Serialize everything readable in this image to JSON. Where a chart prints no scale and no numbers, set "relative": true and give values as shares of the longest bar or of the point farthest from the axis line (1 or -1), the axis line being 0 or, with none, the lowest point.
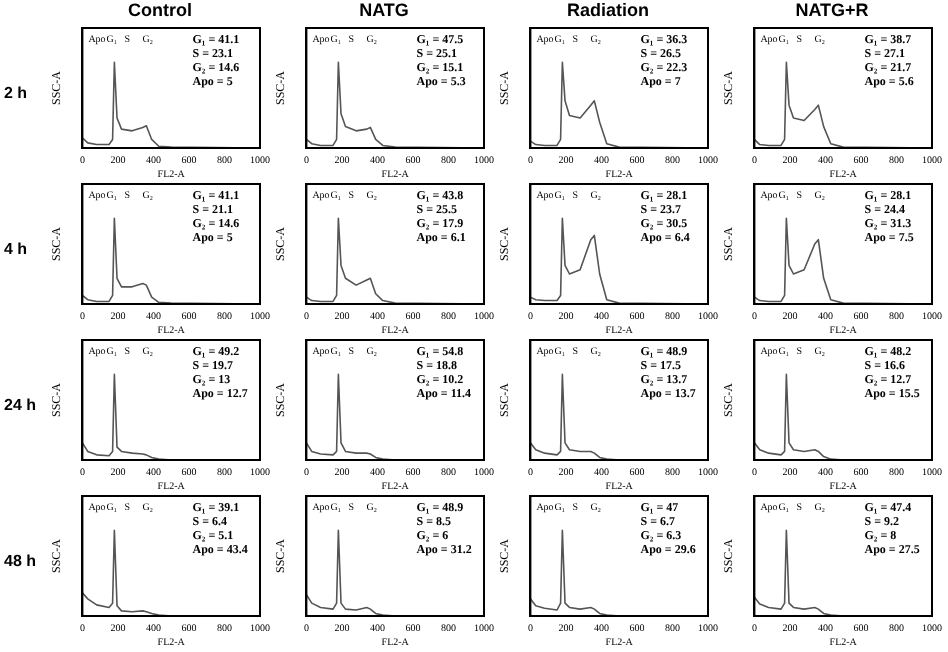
{
  "chart_data": [
    {
      "type": "line",
      "title": "Control",
      "subtitle": "2 h",
      "xlabel": "FL2-A",
      "ylabel": "SSC-A",
      "relative": true,
      "marker": "none",
      "color": "#555555",
      "xlim": [
        0,
        1000
      ],
      "xticks": [
        0,
        200,
        400,
        600,
        800,
        1000
      ],
      "x": [
        0,
        30,
        80,
        150,
        170,
        180,
        195,
        220,
        280,
        340,
        360,
        390,
        430,
        500,
        1000
      ],
      "values": [
        0.12,
        0.06,
        0.04,
        0.04,
        0.1,
        1,
        0.35,
        0.22,
        0.2,
        0.24,
        0.26,
        0.1,
        0.02,
        0.01,
        0
      ],
      "annotations": [
        "G₁ = 41.1",
        "S = 23.1",
        "G₂ = 14.6",
        "Apo = 5",
        "Apo",
        "G₁",
        "S",
        "G₂"
      ]
    },
    {
      "type": "line",
      "title": "NATG",
      "xlabel": "FL2-A",
      "ylabel": "SSC-A",
      "relative": true,
      "marker": "none",
      "color": "#555555",
      "xlim": [
        0,
        1000
      ],
      "xticks": [
        0,
        200,
        400,
        600,
        800,
        1000
      ],
      "x": [
        0,
        30,
        80,
        150,
        170,
        180,
        195,
        220,
        280,
        340,
        360,
        390,
        430,
        500,
        1000
      ],
      "values": [
        0.1,
        0.05,
        0.03,
        0.03,
        0.1,
        1,
        0.4,
        0.25,
        0.2,
        0.22,
        0.24,
        0.1,
        0.03,
        0.01,
        0
      ],
      "annotations": [
        "G₁ = 47.5",
        "S = 25.1",
        "G₂ = 15.1",
        "Apo = 5.3",
        "Apo",
        "G₁",
        "S",
        "G₂"
      ]
    },
    {
      "type": "line",
      "title": "Radiation",
      "xlabel": "FL2-A",
      "ylabel": "SSC-A",
      "relative": true,
      "marker": "none",
      "color": "#555555",
      "xlim": [
        0,
        1000
      ],
      "xticks": [
        0,
        200,
        400,
        600,
        800,
        1000
      ],
      "x": [
        0,
        30,
        80,
        150,
        170,
        180,
        195,
        220,
        280,
        340,
        360,
        390,
        430,
        500,
        1000
      ],
      "values": [
        0.08,
        0.04,
        0.03,
        0.03,
        0.1,
        1,
        0.55,
        0.38,
        0.35,
        0.5,
        0.55,
        0.3,
        0.05,
        0.01,
        0
      ],
      "annotations": [
        "G₁ = 36.3",
        "S = 26.5",
        "G₂ = 22.3",
        "Apo = 7",
        "Apo",
        "G₁",
        "S",
        "G₂"
      ]
    },
    {
      "type": "line",
      "title": "NATG+R",
      "xlabel": "FL2-A",
      "ylabel": "SSC-A",
      "relative": true,
      "marker": "none",
      "color": "#555555",
      "xlim": [
        0,
        1000
      ],
      "xticks": [
        0,
        200,
        400,
        600,
        800,
        1000
      ],
      "x": [
        0,
        30,
        80,
        150,
        170,
        180,
        195,
        220,
        280,
        340,
        360,
        390,
        430,
        500,
        1000
      ],
      "values": [
        0.1,
        0.04,
        0.03,
        0.03,
        0.1,
        1,
        0.5,
        0.35,
        0.32,
        0.45,
        0.5,
        0.25,
        0.05,
        0.01,
        0
      ],
      "annotations": [
        "G₁ = 38.7",
        "S = 27.1",
        "G₂ = 21.7",
        "Apo = 5.6",
        "Apo",
        "G₁",
        "S",
        "G₂"
      ]
    },
    {
      "type": "line",
      "subtitle": "4 h",
      "xlabel": "FL2-A",
      "ylabel": "SSC-A",
      "relative": true,
      "marker": "none",
      "color": "#555555",
      "xlim": [
        0,
        1000
      ],
      "xticks": [
        0,
        200,
        400,
        600,
        800,
        1000
      ],
      "x": [
        0,
        30,
        80,
        150,
        170,
        180,
        195,
        220,
        280,
        340,
        360,
        390,
        430,
        500,
        1000
      ],
      "values": [
        0.1,
        0.05,
        0.03,
        0.03,
        0.1,
        1,
        0.3,
        0.2,
        0.2,
        0.24,
        0.22,
        0.08,
        0.02,
        0.01,
        0
      ],
      "annotations": [
        "G₁ = 41.1",
        "S = 21.1",
        "G₂ = 14.6",
        "Apo = 5",
        "Apo",
        "G₁",
        "S",
        "G₂"
      ]
    },
    {
      "type": "line",
      "xlabel": "FL2-A",
      "ylabel": "SSC-A",
      "relative": true,
      "marker": "none",
      "color": "#555555",
      "xlim": [
        0,
        1000
      ],
      "xticks": [
        0,
        200,
        400,
        600,
        800,
        1000
      ],
      "x": [
        0,
        30,
        80,
        150,
        170,
        180,
        195,
        220,
        280,
        340,
        360,
        390,
        430,
        500,
        1000
      ],
      "values": [
        0.08,
        0.04,
        0.03,
        0.03,
        0.1,
        1,
        0.45,
        0.3,
        0.22,
        0.28,
        0.3,
        0.12,
        0.04,
        0.01,
        0
      ],
      "annotations": [
        "G₁ = 43.8",
        "S = 25.5",
        "G₂ = 17.9",
        "Apo = 6.1",
        "Apo",
        "G₁",
        "S",
        "G₂"
      ]
    },
    {
      "type": "line",
      "xlabel": "FL2-A",
      "ylabel": "SSC-A",
      "relative": true,
      "marker": "none",
      "color": "#555555",
      "xlim": [
        0,
        1000
      ],
      "xticks": [
        0,
        200,
        400,
        600,
        800,
        1000
      ],
      "x": [
        0,
        30,
        80,
        150,
        170,
        180,
        195,
        220,
        280,
        340,
        360,
        390,
        430,
        500,
        1000
      ],
      "values": [
        0.08,
        0.05,
        0.04,
        0.04,
        0.1,
        1,
        0.45,
        0.35,
        0.4,
        0.75,
        0.8,
        0.35,
        0.05,
        0.01,
        0
      ],
      "annotations": [
        "G₁ = 28.1",
        "S = 23.7",
        "G₂ = 30.5",
        "Apo = 6.4",
        "Apo",
        "G₁",
        "S",
        "G₂"
      ]
    },
    {
      "type": "line",
      "xlabel": "FL2-A",
      "ylabel": "SSC-A",
      "relative": true,
      "marker": "none",
      "color": "#555555",
      "xlim": [
        0,
        1000
      ],
      "xticks": [
        0,
        200,
        400,
        600,
        800,
        1000
      ],
      "x": [
        0,
        30,
        80,
        150,
        170,
        180,
        195,
        220,
        280,
        340,
        360,
        390,
        430,
        500,
        1000
      ],
      "values": [
        0.08,
        0.04,
        0.03,
        0.03,
        0.1,
        1,
        0.45,
        0.35,
        0.4,
        0.7,
        0.75,
        0.3,
        0.05,
        0.01,
        0
      ],
      "annotations": [
        "G₁ = 28.1",
        "S = 24.4",
        "G₂ = 31.3",
        "Apo = 7.5",
        "Apo",
        "G₁",
        "S",
        "G₂"
      ]
    },
    {
      "type": "line",
      "subtitle": "24 h",
      "xlabel": "FL2-A",
      "ylabel": "SSC-A",
      "relative": true,
      "marker": "none",
      "color": "#555555",
      "xlim": [
        0,
        1000
      ],
      "xticks": [
        0,
        200,
        400,
        600,
        800,
        1000
      ],
      "x": [
        0,
        30,
        80,
        150,
        170,
        180,
        195,
        220,
        280,
        340,
        360,
        390,
        430,
        500,
        1000
      ],
      "values": [
        0.2,
        0.1,
        0.06,
        0.05,
        0.1,
        1,
        0.15,
        0.1,
        0.08,
        0.07,
        0.06,
        0.03,
        0.01,
        0,
        0
      ],
      "annotations": [
        "G₁ = 49.2",
        "S = 19.7",
        "G₂ = 13",
        "Apo = 12.7",
        "Apo",
        "G₁",
        "S",
        "G₂"
      ]
    },
    {
      "type": "line",
      "xlabel": "FL2-A",
      "ylabel": "SSC-A",
      "relative": true,
      "marker": "none",
      "color": "#555555",
      "xlim": [
        0,
        1000
      ],
      "xticks": [
        0,
        200,
        400,
        600,
        800,
        1000
      ],
      "x": [
        0,
        30,
        80,
        150,
        170,
        180,
        195,
        220,
        280,
        340,
        360,
        390,
        430,
        500,
        1000
      ],
      "values": [
        0.2,
        0.1,
        0.07,
        0.06,
        0.1,
        1,
        0.2,
        0.1,
        0.08,
        0.08,
        0.07,
        0.03,
        0.01,
        0,
        0
      ],
      "annotations": [
        "G₁ = 54.8",
        "S = 18.8",
        "G₂ = 10.2",
        "Apo = 11.4",
        "Apo",
        "G₁",
        "S",
        "G₂"
      ]
    },
    {
      "type": "line",
      "xlabel": "FL2-A",
      "ylabel": "SSC-A",
      "relative": true,
      "marker": "none",
      "color": "#555555",
      "xlim": [
        0,
        1000
      ],
      "xticks": [
        0,
        200,
        400,
        600,
        800,
        1000
      ],
      "x": [
        0,
        30,
        80,
        150,
        170,
        180,
        195,
        220,
        280,
        340,
        360,
        390,
        430,
        500,
        1000
      ],
      "values": [
        0.2,
        0.12,
        0.08,
        0.06,
        0.1,
        1,
        0.2,
        0.12,
        0.1,
        0.1,
        0.08,
        0.03,
        0.01,
        0,
        0
      ],
      "annotations": [
        "G₁ = 48.9",
        "S = 17.5",
        "G₂ = 13.7",
        "Apo = 13.7",
        "Apo",
        "G₁",
        "S",
        "G₂"
      ]
    },
    {
      "type": "line",
      "xlabel": "FL2-A",
      "ylabel": "SSC-A",
      "relative": true,
      "marker": "none",
      "color": "#555555",
      "xlim": [
        0,
        1000
      ],
      "xticks": [
        0,
        200,
        400,
        600,
        800,
        1000
      ],
      "x": [
        0,
        30,
        80,
        150,
        170,
        180,
        195,
        220,
        280,
        340,
        360,
        390,
        430,
        500,
        1000
      ],
      "values": [
        0.2,
        0.12,
        0.08,
        0.06,
        0.1,
        1,
        0.2,
        0.12,
        0.1,
        0.12,
        0.1,
        0.04,
        0.01,
        0,
        0
      ],
      "annotations": [
        "G₁ = 48.2",
        "S = 16.6",
        "G₂ = 12.7",
        "Apo = 15.5",
        "Apo",
        "G₁",
        "S",
        "G₂"
      ]
    },
    {
      "type": "line",
      "subtitle": "48 h",
      "xlabel": "FL2-A",
      "ylabel": "SSC-A",
      "relative": true,
      "marker": "none",
      "color": "#555555",
      "xlim": [
        0,
        1000
      ],
      "xticks": [
        0,
        200,
        400,
        600,
        800,
        1000
      ],
      "x": [
        0,
        30,
        80,
        150,
        170,
        180,
        195,
        220,
        280,
        340,
        360,
        390,
        430,
        500,
        1000
      ],
      "values": [
        0.27,
        0.2,
        0.13,
        0.1,
        0.15,
        1,
        0.12,
        0.06,
        0.05,
        0.06,
        0.05,
        0.03,
        0.01,
        0,
        0
      ],
      "annotations": [
        "G₁ = 39.1",
        "S = 6.4",
        "G₂ = 5.1",
        "Apo = 43.4",
        "Apo",
        "G₁",
        "S",
        "G₂"
      ]
    },
    {
      "type": "line",
      "xlabel": "FL2-A",
      "ylabel": "SSC-A",
      "relative": true,
      "marker": "none",
      "color": "#555555",
      "xlim": [
        0,
        1000
      ],
      "xticks": [
        0,
        200,
        400,
        600,
        800,
        1000
      ],
      "x": [
        0,
        30,
        80,
        150,
        170,
        180,
        195,
        220,
        280,
        340,
        360,
        390,
        430,
        500,
        1000
      ],
      "values": [
        0.25,
        0.15,
        0.1,
        0.08,
        0.15,
        1,
        0.15,
        0.08,
        0.07,
        0.1,
        0.08,
        0.03,
        0.01,
        0,
        0
      ],
      "annotations": [
        "G₁ = 48.9",
        "S = 8.5",
        "G₂ = 6",
        "Apo = 31.2",
        "Apo",
        "G₁",
        "S",
        "G₂"
      ]
    },
    {
      "type": "line",
      "xlabel": "FL2-A",
      "ylabel": "SSC-A",
      "relative": true,
      "marker": "none",
      "color": "#555555",
      "xlim": [
        0,
        1000
      ],
      "xticks": [
        0,
        200,
        400,
        600,
        800,
        1000
      ],
      "x": [
        0,
        30,
        80,
        150,
        170,
        180,
        195,
        220,
        280,
        340,
        360,
        390,
        430,
        500,
        1000
      ],
      "values": [
        0.2,
        0.12,
        0.09,
        0.07,
        0.15,
        1,
        0.15,
        0.1,
        0.08,
        0.1,
        0.08,
        0.03,
        0.01,
        0,
        0
      ],
      "annotations": [
        "G₁ = 47",
        "S = 6.7",
        "G₂ = 6.3",
        "Apo = 29.6",
        "Apo",
        "G₁",
        "S",
        "G₂"
      ]
    },
    {
      "type": "line",
      "xlabel": "FL2-A",
      "ylabel": "SSC-A",
      "relative": true,
      "marker": "none",
      "color": "#555555",
      "xlim": [
        0,
        1000
      ],
      "xticks": [
        0,
        200,
        400,
        600,
        800,
        1000
      ],
      "x": [
        0,
        30,
        80,
        150,
        170,
        180,
        195,
        220,
        280,
        340,
        360,
        390,
        430,
        500,
        1000
      ],
      "values": [
        0.22,
        0.14,
        0.1,
        0.08,
        0.15,
        1,
        0.15,
        0.1,
        0.08,
        0.1,
        0.08,
        0.03,
        0.01,
        0,
        0
      ],
      "annotations": [
        "G₁ = 47.4",
        "S = 9.2",
        "G₂ = 8",
        "Apo = 27.5",
        "Apo",
        "G₁",
        "S",
        "G₂"
      ]
    }
  ]
}
